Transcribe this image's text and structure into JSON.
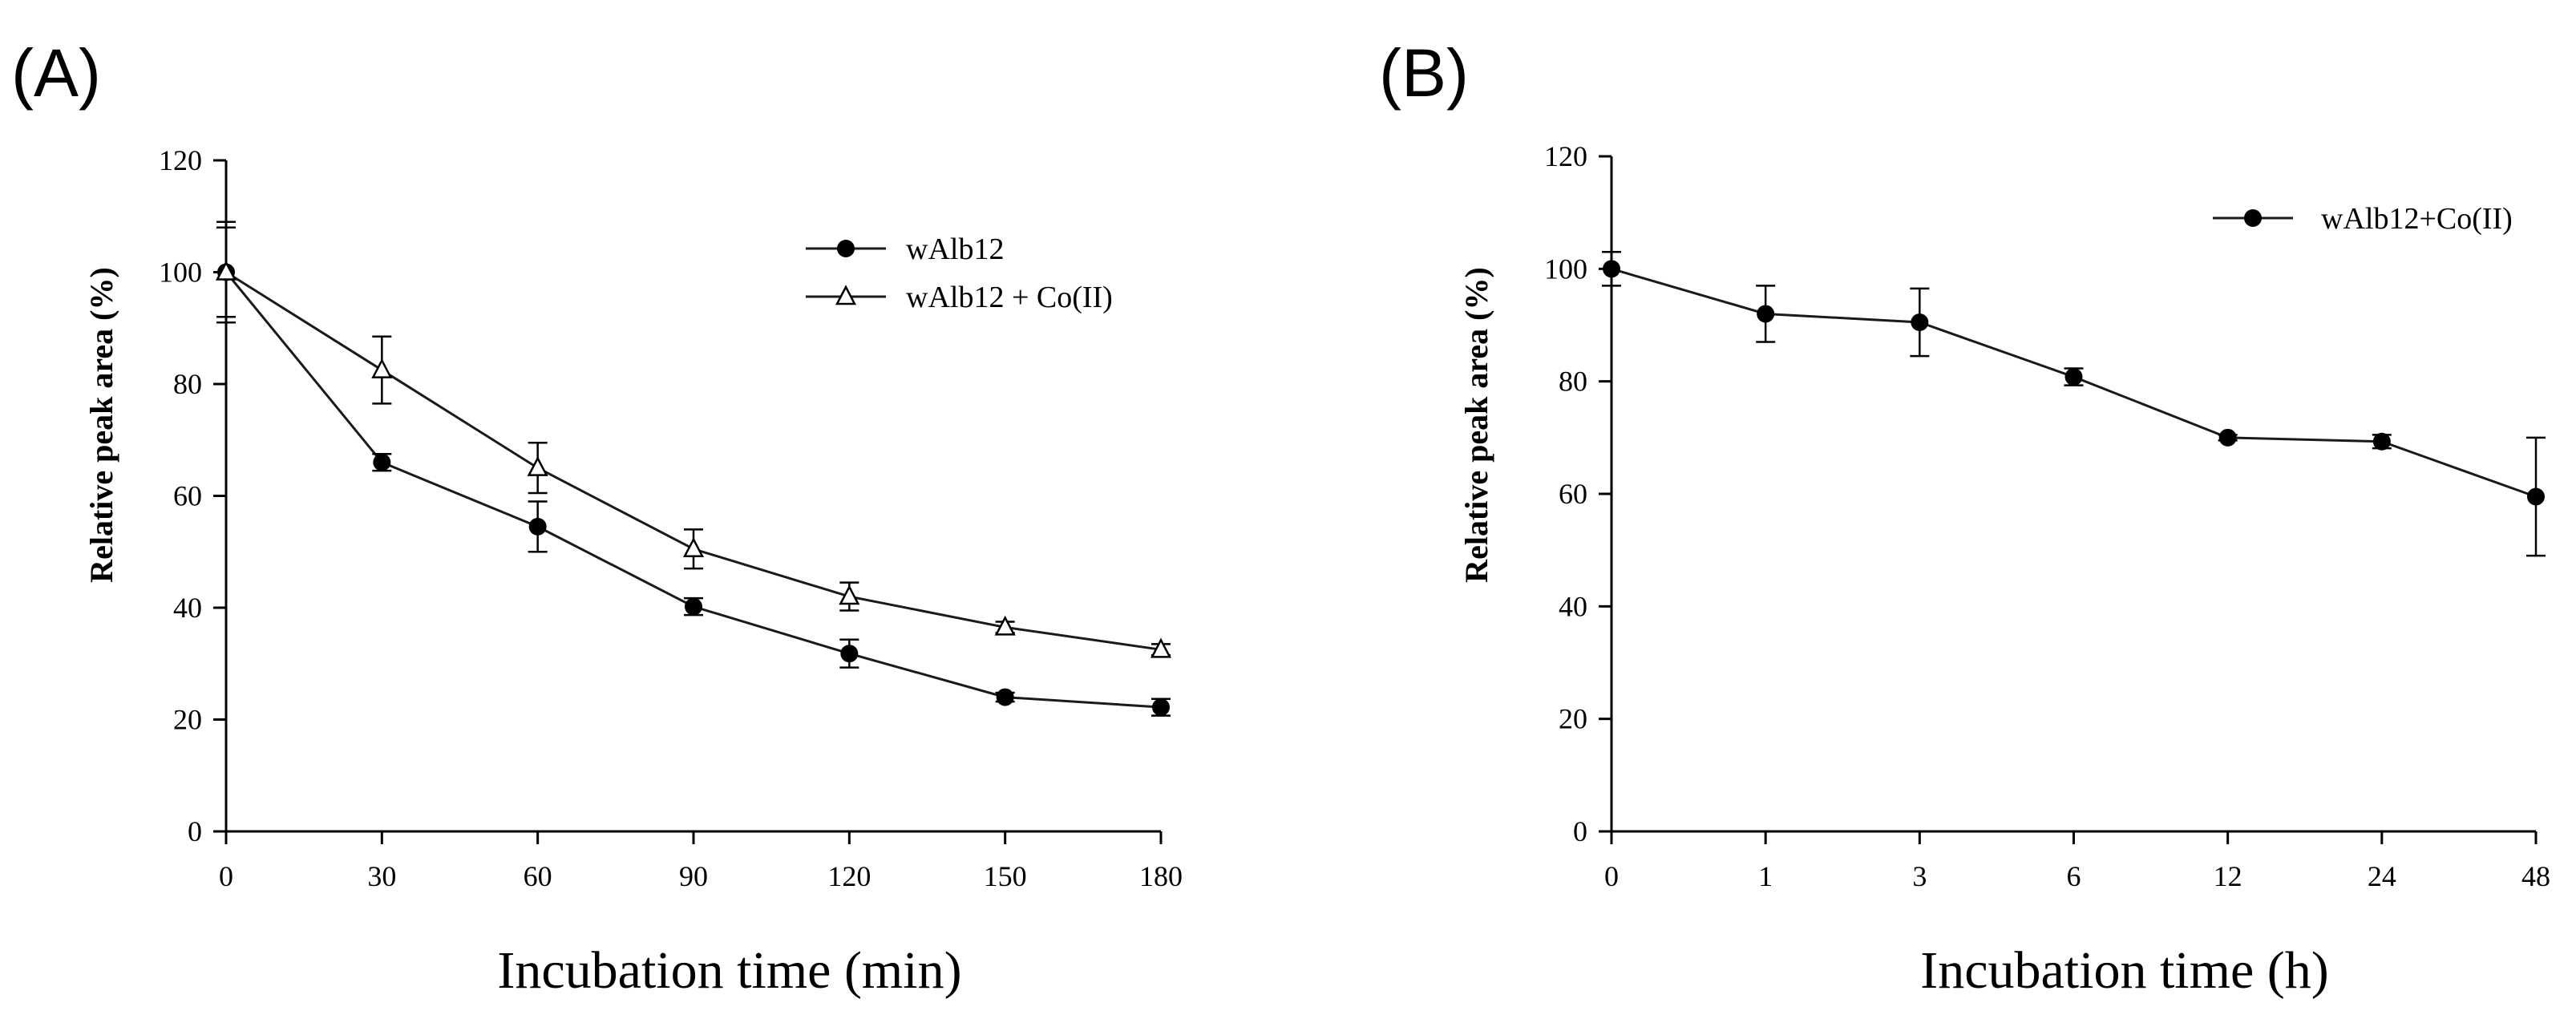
{
  "chart_data": [
    {
      "panel_label": "(A)",
      "type": "line",
      "xlabel": "Incubation time (min)",
      "ylabel": "Relative peak area (%)",
      "ylim": [
        0,
        120
      ],
      "yticks": [
        "0",
        "20",
        "40",
        "60",
        "80",
        "100",
        "120"
      ],
      "categories": [
        "0",
        "30",
        "60",
        "90",
        "120",
        "150",
        "180"
      ],
      "legend_position": "top-right",
      "series": [
        {
          "name": "wAlb12",
          "marker": "filled-circle",
          "values": [
            100,
            66,
            54.5,
            40.2,
            31.8,
            24,
            22.2
          ],
          "errors": [
            9,
            1.5,
            4.5,
            1.5,
            2.5,
            0.8,
            1.5
          ]
        },
        {
          "name": "wAlb12 + Co(II)",
          "marker": "open-triangle",
          "values": [
            100,
            82.5,
            65,
            50.5,
            42,
            36.5,
            32.5
          ],
          "errors": [
            8,
            6,
            4.5,
            3.5,
            2.5,
            1,
            1
          ]
        }
      ]
    },
    {
      "panel_label": "(B)",
      "type": "line",
      "xlabel": "Incubation time (h)",
      "ylabel": "Relative peak area (%)",
      "ylim": [
        0,
        120
      ],
      "yticks": [
        "0",
        "20",
        "40",
        "60",
        "80",
        "100",
        "120"
      ],
      "categories": [
        "0",
        "1",
        "3",
        "6",
        "12",
        "24",
        "48"
      ],
      "legend_position": "top-right",
      "series": [
        {
          "name": "wAlb12+Co(II)",
          "marker": "filled-circle",
          "values": [
            100,
            92,
            90.5,
            80.8,
            70,
            69.3,
            59.5
          ],
          "errors": [
            3,
            5,
            6,
            1.5,
            0.5,
            1.2,
            10.5
          ]
        }
      ]
    }
  ]
}
